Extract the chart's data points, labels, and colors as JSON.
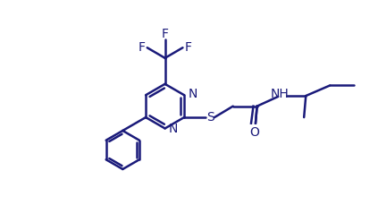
{
  "bg_color": "#ffffff",
  "line_color": "#1a1a7a",
  "line_width": 1.8,
  "font_size": 10,
  "fig_width": 4.23,
  "fig_height": 2.29,
  "dpi": 100,
  "xlim": [
    0,
    10
  ],
  "ylim": [
    0,
    5.5
  ]
}
